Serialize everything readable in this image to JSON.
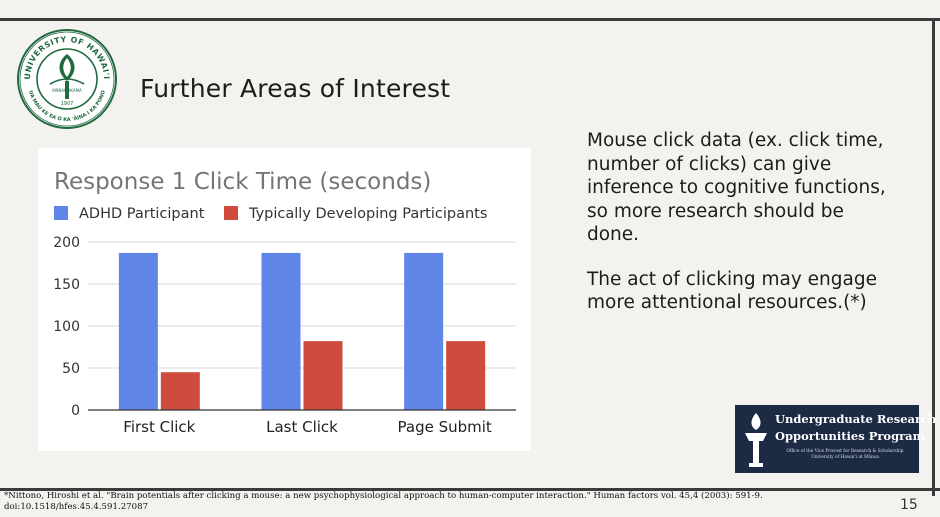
{
  "slide": {
    "title": "Further Areas of Interest",
    "body": [
      "Mouse click data (ex. click time, number of clicks) can give inference to cognitive functions, so more research should be done.",
      "The act of clicking may engage more attentional resources.(*)"
    ],
    "citation": "*Nittono, Hiroshi et al. \"Brain potentials after clicking a mouse: a new psychophysiological approach to human-computer interaction.\" Human factors vol. 45,4 (2003): 591-9. doi:10.1518/hfes.45.4.591.27087",
    "page_number": "15"
  },
  "logos": {
    "seal": {
      "ring_top": "UNIVERSITY OF HAWAI'I",
      "ring_bottom": "UA MAU KE EA O KA 'ĀINA I KA PONO",
      "center": "MĀNAMAKAMA",
      "year": "1907"
    },
    "urop": {
      "line1": "Undergraduate Research",
      "line2": "Opportunities Program",
      "sub1": "Office of the Vice Provost for Research & Scholarship",
      "sub2": "University of Hawai'i at Mānoa"
    }
  },
  "chart_data": {
    "type": "bar",
    "title": "Response 1 Click Time (seconds)",
    "categories": [
      "First Click",
      "Last Click",
      "Page Submit"
    ],
    "series": [
      {
        "name": "ADHD Participant",
        "color": "#5f86e6",
        "values": [
          187,
          187,
          187
        ]
      },
      {
        "name": "Typically Developing Participants",
        "color": "#cf4b3d",
        "values": [
          45,
          82,
          82
        ]
      }
    ],
    "ylim": [
      0,
      200
    ],
    "yticks": [
      0,
      50,
      100,
      150,
      200
    ],
    "grid": true,
    "legend": "top-left"
  },
  "colors": {
    "background": "#f3f2ee",
    "rule": "#3b3b3b",
    "urop_bg": "#1c2a44"
  }
}
